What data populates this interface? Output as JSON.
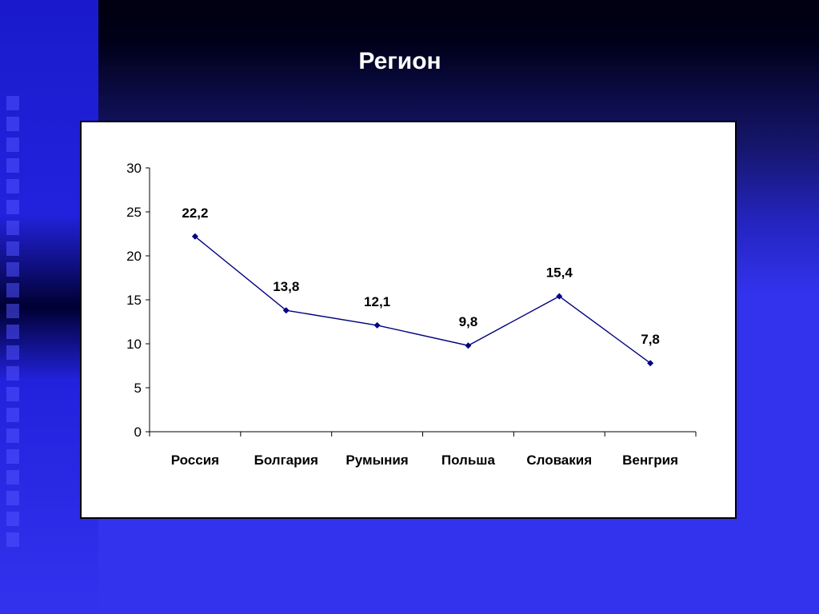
{
  "slide": {
    "title": "Регион"
  },
  "colors": {
    "background": "#3333ee",
    "series_line": "#000080",
    "chart_bg": "#ffffff"
  },
  "chart_data": {
    "type": "line",
    "categories": [
      "Россия",
      "Болгария",
      "Румыния",
      "Польша",
      "Словакия",
      "Венгрия"
    ],
    "values": [
      22.2,
      13.8,
      12.1,
      9.8,
      15.4,
      7.8
    ],
    "data_labels": [
      "22,2",
      "13,8",
      "12,1",
      "9,8",
      "15,4",
      "7,8"
    ],
    "yticks": [
      "0",
      "5",
      "10",
      "15",
      "20",
      "25",
      "30"
    ],
    "ylim": [
      0,
      30
    ],
    "grid": false,
    "legend": "none",
    "marker": "diamond"
  }
}
